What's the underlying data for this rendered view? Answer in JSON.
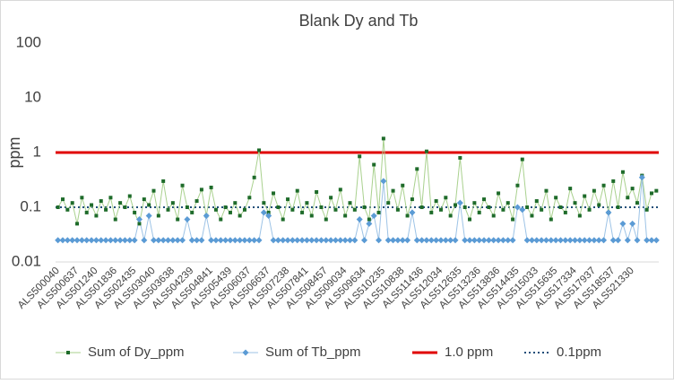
{
  "chart_data": {
    "type": "line",
    "title": "Blank Dy and Tb",
    "y_label": "ppm",
    "log_scale": true,
    "ylim": [
      0.01,
      100
    ],
    "yticks": [
      0.01,
      0.1,
      1,
      10,
      100
    ],
    "categories": [
      "ALS500040",
      null,
      null,
      null,
      "ALS500637",
      null,
      null,
      null,
      "ALS501240",
      null,
      null,
      null,
      "ALS501836",
      null,
      null,
      null,
      "ALS502435",
      null,
      null,
      null,
      "ALS503040",
      null,
      null,
      null,
      "ALS503638",
      null,
      null,
      null,
      "ALS504239",
      null,
      null,
      null,
      "ALS504841",
      null,
      null,
      null,
      "ALS505439",
      null,
      null,
      null,
      "ALS506037",
      null,
      null,
      null,
      "ALS506637",
      null,
      null,
      null,
      "ALS507238",
      null,
      null,
      null,
      "ALS507841",
      null,
      null,
      null,
      "ALS508457",
      null,
      null,
      null,
      "ALS509034",
      null,
      null,
      null,
      "ALS509634",
      null,
      null,
      null,
      "ALS510235",
      null,
      null,
      null,
      "ALS510838",
      null,
      null,
      null,
      "ALS511436",
      null,
      null,
      null,
      "ALS512034",
      null,
      null,
      null,
      "ALS512635",
      null,
      null,
      null,
      "ALS513236",
      null,
      null,
      null,
      "ALS513836",
      null,
      null,
      null,
      "ALS514435",
      null,
      null,
      null,
      "ALS515033",
      null,
      null,
      null,
      "ALS515635",
      null,
      null,
      null,
      "ALS517334",
      null,
      null,
      null,
      "ALS517937",
      null,
      null,
      null,
      "ALS518537",
      null,
      null,
      null,
      "ALS521330",
      null,
      null,
      null,
      null,
      null
    ],
    "series": [
      {
        "name": "Sum of Dy_ppm",
        "color": "#1e6b2a",
        "line_color": "#a9d18e",
        "marker": "square",
        "values": [
          0.1,
          0.14,
          0.09,
          0.12,
          0.05,
          0.15,
          0.08,
          0.11,
          0.07,
          0.13,
          0.09,
          0.15,
          0.06,
          0.12,
          0.1,
          0.16,
          0.08,
          0.05,
          0.14,
          0.11,
          0.2,
          0.07,
          0.3,
          0.09,
          0.12,
          0.06,
          0.25,
          0.1,
          0.08,
          0.13,
          0.21,
          0.07,
          0.23,
          0.09,
          0.06,
          0.1,
          0.08,
          0.12,
          0.07,
          0.09,
          0.15,
          0.35,
          1.1,
          0.12,
          0.08,
          0.18,
          0.1,
          0.06,
          0.14,
          0.09,
          0.2,
          0.08,
          0.12,
          0.07,
          0.19,
          0.1,
          0.06,
          0.15,
          0.09,
          0.21,
          0.07,
          0.12,
          0.09,
          0.85,
          0.1,
          0.06,
          0.6,
          0.08,
          1.8,
          0.12,
          0.2,
          0.09,
          0.25,
          0.07,
          0.14,
          0.5,
          0.1,
          1.05,
          0.08,
          0.13,
          0.09,
          0.15,
          0.07,
          0.11,
          0.8,
          0.1,
          0.06,
          0.12,
          0.08,
          0.14,
          0.1,
          0.07,
          0.18,
          0.09,
          0.12,
          0.06,
          0.25,
          0.75,
          0.1,
          0.07,
          0.13,
          0.09,
          0.2,
          0.06,
          0.15,
          0.1,
          0.08,
          0.22,
          0.12,
          0.07,
          0.16,
          0.09,
          0.2,
          0.11,
          0.25,
          0.08,
          0.3,
          0.1,
          0.44,
          0.15,
          0.22,
          0.12,
          0.38,
          0.09,
          0.18,
          0.2
        ]
      },
      {
        "name": "Sum of Tb_ppm",
        "color": "#5b9bd5",
        "line_color": "#9dc3e6",
        "marker": "diamond",
        "values": [
          0.025,
          0.025,
          0.025,
          0.025,
          0.025,
          0.025,
          0.025,
          0.025,
          0.025,
          0.025,
          0.025,
          0.025,
          0.025,
          0.025,
          0.025,
          0.025,
          0.025,
          0.06,
          0.025,
          0.07,
          0.025,
          0.025,
          0.025,
          0.025,
          0.025,
          0.025,
          0.025,
          0.06,
          0.025,
          0.025,
          0.025,
          0.07,
          0.025,
          0.025,
          0.025,
          0.025,
          0.025,
          0.025,
          0.025,
          0.025,
          0.025,
          0.025,
          0.025,
          0.08,
          0.07,
          0.025,
          0.025,
          0.025,
          0.025,
          0.025,
          0.025,
          0.025,
          0.025,
          0.025,
          0.025,
          0.025,
          0.025,
          0.025,
          0.025,
          0.025,
          0.025,
          0.025,
          0.025,
          0.06,
          0.025,
          0.05,
          0.07,
          0.025,
          0.3,
          0.025,
          0.025,
          0.025,
          0.025,
          0.025,
          0.08,
          0.025,
          0.025,
          0.025,
          0.025,
          0.025,
          0.025,
          0.025,
          0.025,
          0.025,
          0.12,
          0.025,
          0.025,
          0.025,
          0.025,
          0.025,
          0.025,
          0.025,
          0.025,
          0.025,
          0.025,
          0.025,
          0.1,
          0.09,
          0.025,
          0.025,
          0.025,
          0.025,
          0.025,
          0.025,
          0.025,
          0.025,
          0.025,
          0.025,
          0.025,
          0.025,
          0.025,
          0.025,
          0.025,
          0.025,
          0.025,
          0.08,
          0.025,
          0.025,
          0.05,
          0.025,
          0.05,
          0.025,
          0.35,
          0.025,
          0.025,
          0.025
        ]
      }
    ],
    "reference_lines": [
      {
        "name": "1.0 ppm",
        "value": 1,
        "color": "#e00000",
        "style": "solid"
      },
      {
        "name": "0.1ppm",
        "value": 0.1,
        "color": "#1f4e79",
        "style": "dotted"
      }
    ],
    "legend": "bottom"
  }
}
